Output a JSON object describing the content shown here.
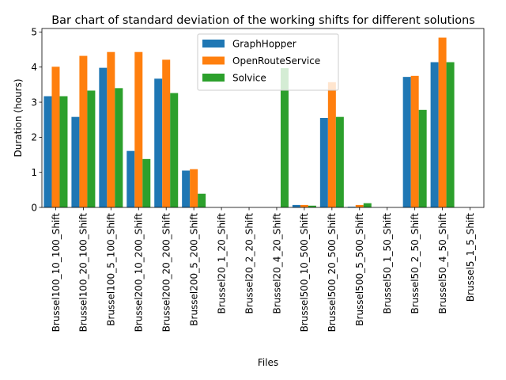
{
  "chart_data": {
    "type": "bar",
    "title": "Bar chart of standard deviation of the working shifts for different solutions",
    "xlabel": "Files",
    "ylabel": "Duration (hours)",
    "ylim": [
      0,
      5.1
    ],
    "yticks": [
      "0",
      "1",
      "2",
      "3",
      "4",
      "5"
    ],
    "legend_position": "top-center",
    "categories": [
      "Brussel100_10_100_Shift",
      "Brussel100_20_100_Shift",
      "Brussel100_5_100_Shift",
      "Brussel200_10_200_Shift",
      "Brussel200_20_200_Shift",
      "Brussel200_5_200_Shift",
      "Brussel20_1_20_Shift",
      "Brussel20_2_20_Shift",
      "Brussel20_4_20_Shift",
      "Brussel500_10_500_Shift",
      "Brussel500_20_500_Shift",
      "Brussel500_5_500_Shift",
      "Brussel50_1_50_Shift",
      "Brussel50_2_50_Shift",
      "Brussel50_4_50_Shift",
      "Brussel5_1_5_Shift"
    ],
    "series": [
      {
        "name": "GraphHopper",
        "color": "#1f77b4",
        "values": [
          3.17,
          2.58,
          3.98,
          1.61,
          3.67,
          1.05,
          0,
          0,
          0,
          0.07,
          2.55,
          0.02,
          0,
          3.72,
          4.14,
          0
        ]
      },
      {
        "name": "OpenRouteService",
        "color": "#ff7f0e",
        "values": [
          4.01,
          4.32,
          4.43,
          4.43,
          4.21,
          1.09,
          0,
          0,
          0,
          0.07,
          3.57,
          0.07,
          0,
          3.75,
          4.84,
          0
        ]
      },
      {
        "name": "Solvice",
        "color": "#2ca02c",
        "values": [
          3.17,
          3.33,
          3.4,
          1.38,
          3.26,
          0.39,
          0,
          0,
          3.97,
          0.05,
          2.58,
          0.12,
          0,
          2.78,
          4.14,
          0
        ]
      }
    ]
  }
}
